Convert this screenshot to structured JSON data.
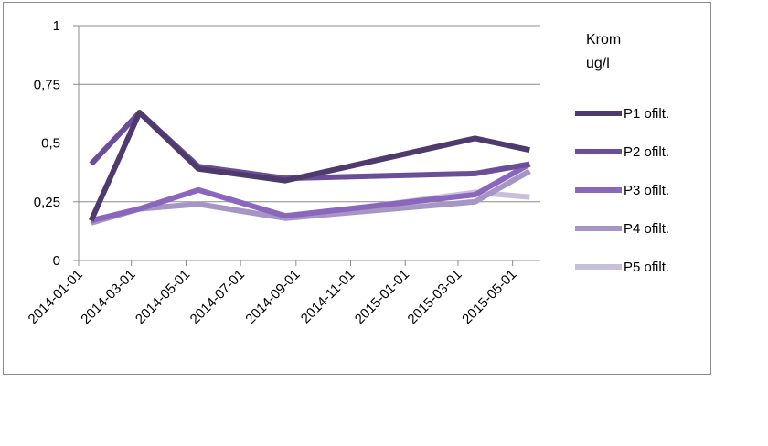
{
  "chart_data": {
    "type": "line",
    "legend_title": [
      "Krom",
      "ug/l"
    ],
    "x_ticks": [
      "2014-01-01",
      "2014-03-01",
      "2014-05-01",
      "2014-07-01",
      "2014-09-01",
      "2014-11-01",
      "2015-01-01",
      "2015-03-01",
      "2015-05-01"
    ],
    "x_range": [
      "2014-01-01",
      "2015-06-01"
    ],
    "y_ticks": [
      "0",
      "0,25",
      "0,5",
      "0,75",
      "1"
    ],
    "ylim": [
      0,
      1
    ],
    "grid": true,
    "legend_position": "right",
    "x": [
      "2014-01-15",
      "2014-03-10",
      "2014-05-15",
      "2014-08-20",
      "2015-03-20",
      "2015-05-20"
    ],
    "series": [
      {
        "name": "P1 ofilt.",
        "color": "#4f3a6e",
        "values": [
          0.17,
          0.63,
          0.39,
          0.34,
          0.52,
          0.47
        ]
      },
      {
        "name": "P2 ofilt.",
        "color": "#6b4e98",
        "values": [
          0.41,
          0.63,
          0.4,
          0.35,
          0.37,
          0.41
        ]
      },
      {
        "name": "P3 ofilt.",
        "color": "#8a67bd",
        "values": [
          0.17,
          0.22,
          0.3,
          0.19,
          0.28,
          0.41
        ]
      },
      {
        "name": "P4 ofilt.",
        "color": "#a796c5",
        "values": [
          0.16,
          0.22,
          0.24,
          0.18,
          0.25,
          0.38
        ]
      },
      {
        "name": "P5 ofilt.",
        "color": "#c8bfdb",
        "values": [
          0.17,
          0.22,
          0.24,
          0.18,
          0.29,
          0.27
        ]
      }
    ]
  }
}
